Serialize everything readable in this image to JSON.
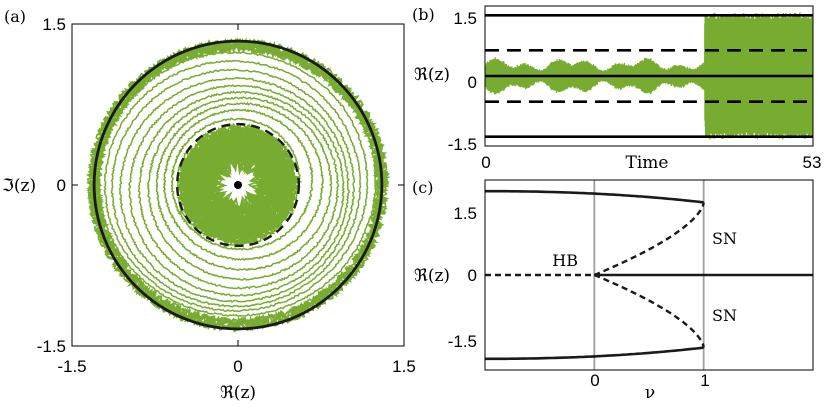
{
  "colors": {
    "trajectory": "#77ac30",
    "curve": "#1a1a1a",
    "grid": "#a0a0a0"
  },
  "chart_data": [
    {
      "panel_label": "(a)",
      "type": "line",
      "xlabel": "ℜ(z)",
      "ylabel": "ℑ(z)",
      "xlim": [
        -1.5,
        1.5
      ],
      "ylim": [
        -1.5,
        1.5
      ],
      "xticks": [
        "-1.5",
        "0",
        "1.5"
      ],
      "yticks": [
        "1.5",
        "0",
        "-1.5"
      ],
      "outer_orbit_radius": 1.3,
      "inner_orbit_radius": 0.55,
      "fixed_point": [
        0,
        0
      ],
      "series": [
        {
          "style": "solid",
          "values": "circle r=1.3"
        },
        {
          "style": "dashed",
          "values": "circle r=0.55"
        }
      ]
    },
    {
      "panel_label": "(b)",
      "type": "line",
      "xlabel": "Time",
      "ylabel": "ℜ(z)",
      "xlim": [
        0,
        53
      ],
      "ylim": [
        -1.5,
        1.5
      ],
      "xticks": [
        "0",
        "53"
      ],
      "yticks": [
        "1.5",
        "0",
        "-1.5"
      ],
      "horizontal_lines": [
        {
          "y": 1.3,
          "style": "solid"
        },
        {
          "y": 0.55,
          "style": "dashed"
        },
        {
          "y": 0,
          "style": "solid"
        },
        {
          "y": -0.55,
          "style": "dashed"
        },
        {
          "y": -1.3,
          "style": "solid"
        }
      ],
      "transition_time": 35.5
    },
    {
      "panel_label": "(c)",
      "type": "line",
      "xlabel": "ν",
      "ylabel": "ℜ(z)",
      "xlim": [
        -1,
        2
      ],
      "ylim": [
        -1.7,
        1.7
      ],
      "xticks": [
        "0",
        "1"
      ],
      "yticks": [
        "1.5",
        "0",
        "-1.5"
      ],
      "annotations": [
        "HB",
        "SN",
        "SN"
      ],
      "vertical_lines": [
        0,
        1
      ]
    }
  ]
}
